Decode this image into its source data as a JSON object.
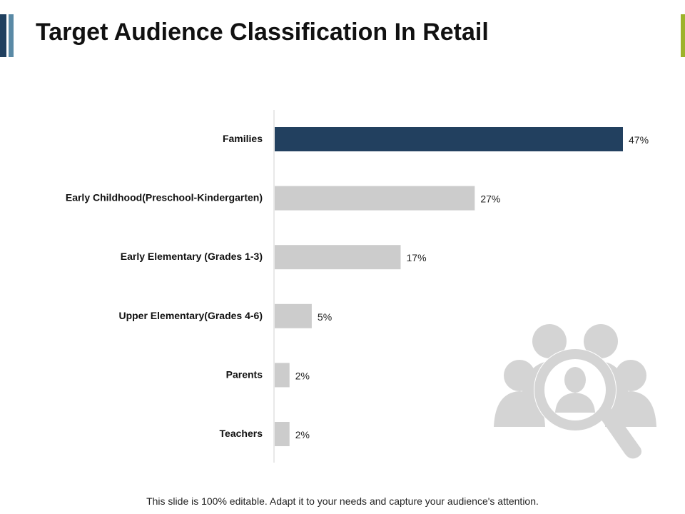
{
  "slide": {
    "title": "Target Audience Classification In Retail",
    "footer": "This slide is 100% editable. Adapt it to your needs and capture your audience's attention."
  },
  "colors": {
    "accent_dark": "#1f3f5e",
    "accent_light": "#5a8aa6",
    "accent_right": "#9db32a",
    "highlight_bar": "#22405f",
    "bar": "#cccccc",
    "icon": "#d4d4d4"
  },
  "icon": {
    "name": "people-search-icon"
  },
  "chart_data": {
    "type": "bar",
    "orientation": "horizontal",
    "categories": [
      "Families",
      "Early Childhood(Preschool-Kindergarten)",
      "Early Elementary (Grades 1-3)",
      "Upper Elementary(Grades 4-6)",
      "Parents",
      "Teachers"
    ],
    "values": [
      47,
      27,
      17,
      5,
      2,
      2
    ],
    "data_labels": [
      "47%",
      "27%",
      "17%",
      "5%",
      "2%",
      "2%"
    ],
    "unit": "%",
    "highlight_index": 0,
    "xlim": [
      0,
      47
    ],
    "grid": false,
    "legend": "none"
  }
}
